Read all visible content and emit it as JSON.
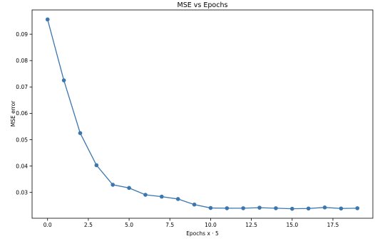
{
  "chart_data": {
    "type": "line",
    "title": "MSE vs Epochs",
    "xlabel": "Epochs x · 5",
    "ylabel": "MSE error",
    "x": [
      0,
      1,
      2,
      3,
      4,
      5,
      6,
      7,
      8,
      9,
      10,
      11,
      12,
      13,
      14,
      15,
      16,
      17,
      18,
      19
    ],
    "series": [
      {
        "values": [
          0.0956,
          0.0725,
          0.0525,
          0.0403,
          0.0329,
          0.0317,
          0.0291,
          0.0284,
          0.0275,
          0.0254,
          0.0241,
          0.024,
          0.024,
          0.0242,
          0.024,
          0.0238,
          0.0239,
          0.0243,
          0.0239,
          0.024
        ],
        "color": "#3a76af"
      }
    ],
    "xlim": [
      -0.95,
      19.95
    ],
    "ylim": [
      0.0202,
      0.0992
    ],
    "xticks": [
      0.0,
      2.5,
      5.0,
      7.5,
      10.0,
      12.5,
      15.0,
      17.5
    ],
    "xtick_labels": [
      "0.0",
      "2.5",
      "5.0",
      "7.5",
      "10.0",
      "12.5",
      "15.0",
      "17.5"
    ],
    "yticks": [
      0.03,
      0.04,
      0.05,
      0.06,
      0.07,
      0.08,
      0.09
    ],
    "ytick_labels": [
      "0.03",
      "0.04",
      "0.05",
      "0.06",
      "0.07",
      "0.08",
      "0.09"
    ],
    "grid": false,
    "marker": "circle"
  }
}
